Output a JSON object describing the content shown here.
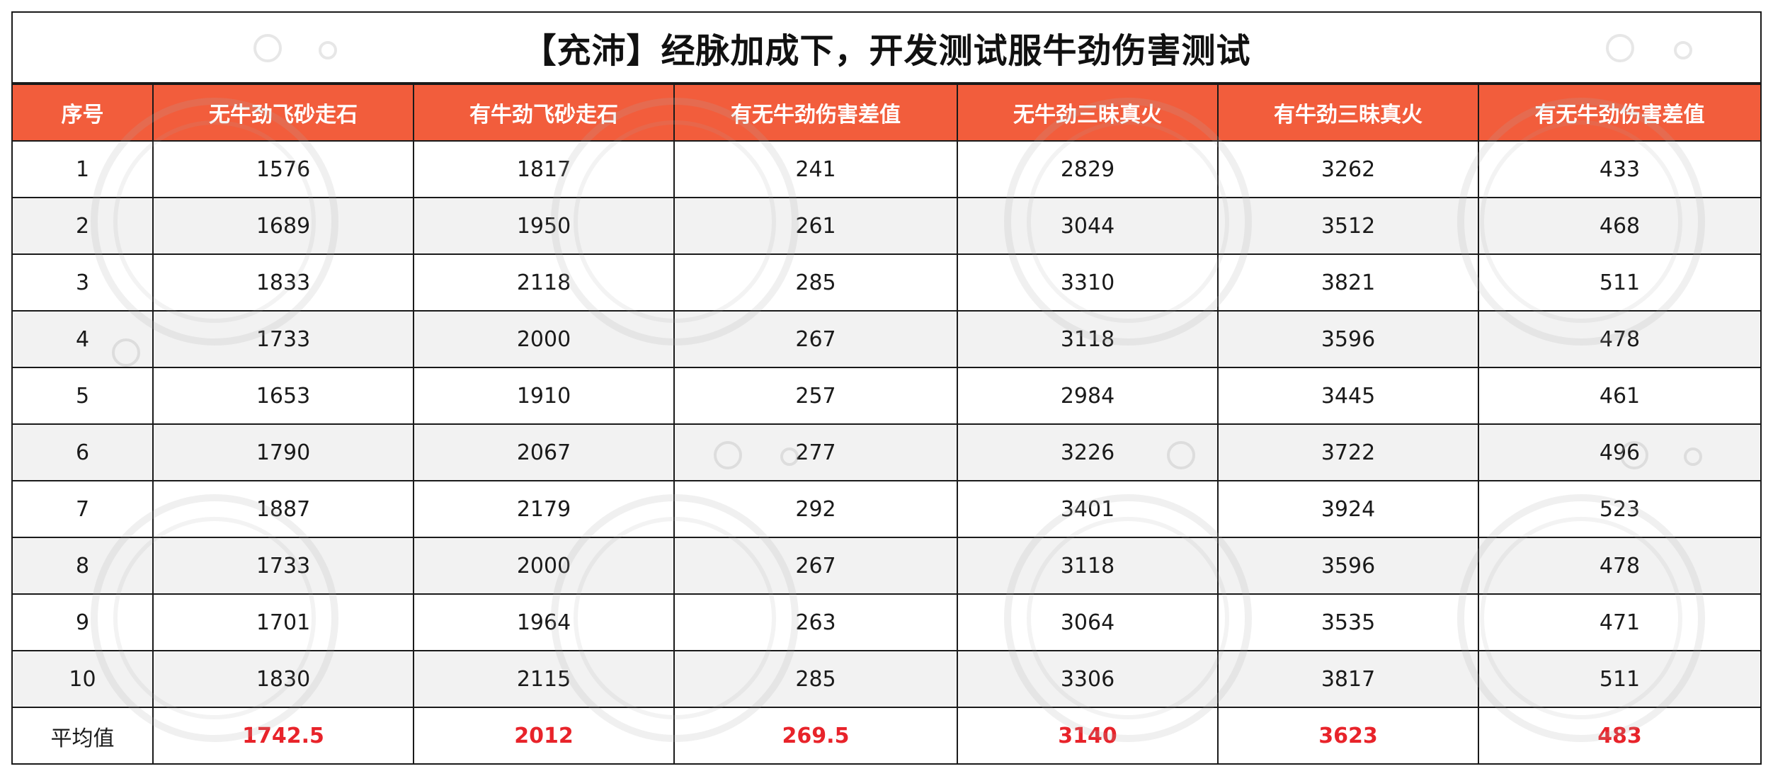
{
  "title": "【充沛】经脉加成下，开发测试服牛劲伤害测试",
  "columns": [
    "序号",
    "无牛劲飞砂走石",
    "有牛劲飞砂走石",
    "有无牛劲伤害差值",
    "无牛劲三昧真火",
    "有牛劲三昧真火",
    "有无牛劲伤害差值"
  ],
  "rows": [
    [
      "1",
      "1576",
      "1817",
      "241",
      "2829",
      "3262",
      "433"
    ],
    [
      "2",
      "1689",
      "1950",
      "261",
      "3044",
      "3512",
      "468"
    ],
    [
      "3",
      "1833",
      "2118",
      "285",
      "3310",
      "3821",
      "511"
    ],
    [
      "4",
      "1733",
      "2000",
      "267",
      "3118",
      "3596",
      "478"
    ],
    [
      "5",
      "1653",
      "1910",
      "257",
      "2984",
      "3445",
      "461"
    ],
    [
      "6",
      "1790",
      "2067",
      "277",
      "3226",
      "3722",
      "496"
    ],
    [
      "7",
      "1887",
      "2179",
      "292",
      "3401",
      "3924",
      "523"
    ],
    [
      "8",
      "1733",
      "2000",
      "267",
      "3118",
      "3596",
      "478"
    ],
    [
      "9",
      "1701",
      "1964",
      "263",
      "3064",
      "3535",
      "471"
    ],
    [
      "10",
      "1830",
      "2115",
      "285",
      "3306",
      "3817",
      "511"
    ]
  ],
  "average": [
    "平均值",
    "1742.5",
    "2012",
    "269.5",
    "3140",
    "3623",
    "483"
  ],
  "colors": {
    "header_bg": "#f25d3c",
    "header_text": "#ffffff",
    "average_text": "#e8232a",
    "alt_row_bg": "#f2f2f2",
    "border": "#1a1a1a"
  }
}
